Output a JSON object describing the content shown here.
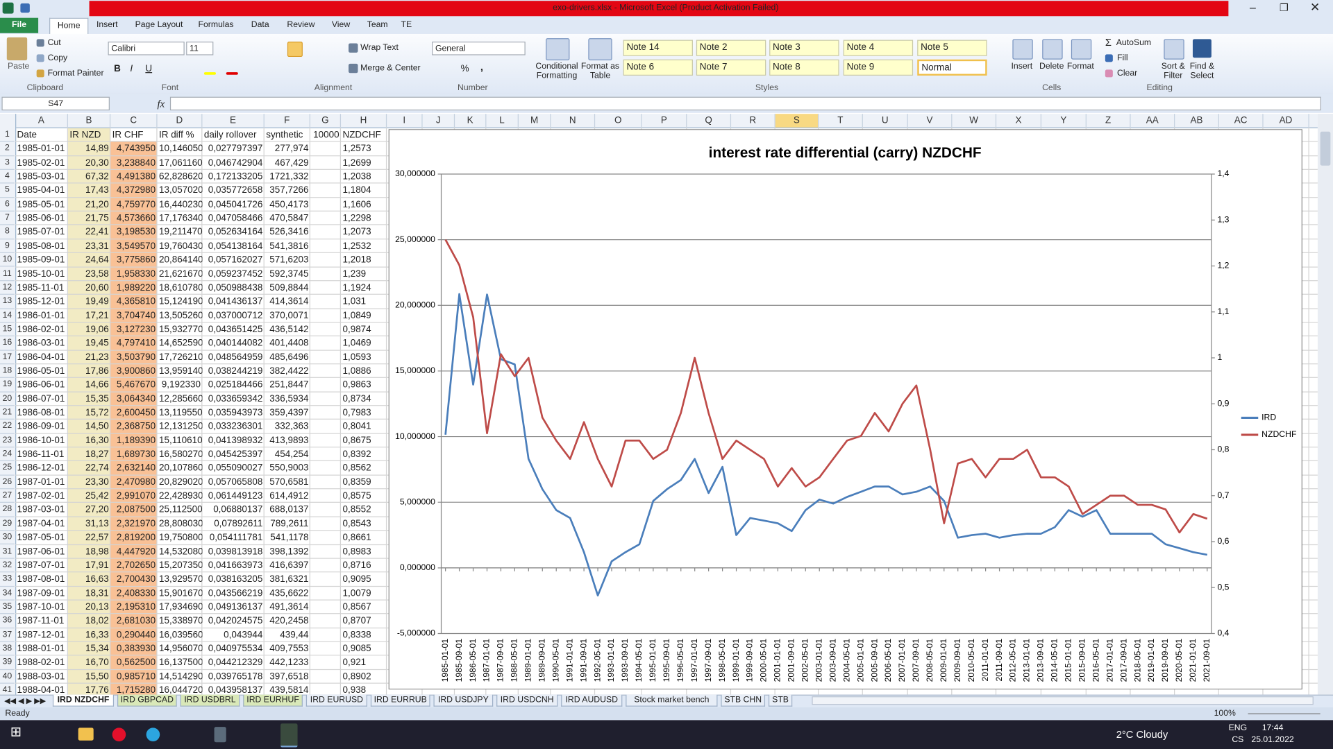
{
  "window": {
    "title": "exo-drivers.xlsx  -  Microsoft Excel (Product Activation Failed)"
  },
  "ribbon": {
    "tabs": [
      "File",
      "Home",
      "Insert",
      "Page Layout",
      "Formulas",
      "Data",
      "Review",
      "View",
      "Team",
      "TE"
    ],
    "clipboard": {
      "label": "Clipboard",
      "items": [
        "Paste",
        "Cut",
        "Copy",
        "Format Painter"
      ]
    },
    "font": {
      "label": "Font",
      "name": "Calibri",
      "size": "11",
      "buttons": [
        "B",
        "I",
        "U"
      ]
    },
    "alignment": {
      "label": "Alignment",
      "items": [
        "Wrap Text",
        "Merge & Center"
      ]
    },
    "number": {
      "label": "Number",
      "format": "General",
      "buttons": [
        "%",
        ","
      ]
    },
    "styles": {
      "label": "Styles",
      "items": [
        "Conditional Formatting",
        "Format as Table"
      ],
      "cells": [
        "Note 14",
        "Note 2",
        "Note 3",
        "Note 4",
        "Note 5",
        "Note 6",
        "Note 7",
        "Note 8",
        "Note 9",
        "Normal"
      ]
    },
    "cells": {
      "label": "Cells",
      "items": [
        "Insert",
        "Delete",
        "Format"
      ]
    },
    "editing": {
      "label": "Editing",
      "items": [
        "AutoSum",
        "Fill",
        "Clear",
        "Sort & Filter",
        "Find & Select"
      ]
    }
  },
  "formula_bar": {
    "name_box": "S47",
    "fx": "fx"
  },
  "columns": [
    "A",
    "B",
    "C",
    "D",
    "E",
    "F",
    "G",
    "H",
    "I",
    "J",
    "K",
    "L",
    "M",
    "N",
    "O",
    "P",
    "Q",
    "R",
    "S",
    "T",
    "U",
    "V",
    "W",
    "X",
    "Y",
    "Z",
    "AA",
    "AB",
    "AC",
    "AD"
  ],
  "row_numbers": [
    1,
    2,
    3,
    4,
    5,
    6,
    7,
    8,
    9,
    10,
    11,
    12,
    13,
    14,
    15,
    16,
    17,
    18,
    19,
    20,
    21,
    22,
    23,
    24,
    25,
    26,
    27,
    28,
    29,
    30,
    31,
    32,
    33,
    34,
    35,
    36,
    37,
    38,
    39,
    40,
    41
  ],
  "sheet": {
    "header": [
      "Date",
      "IR NZD",
      "IR CHF",
      "IR diff %",
      "daily rollover",
      "synthetic",
      "10000",
      "NZDCHF"
    ],
    "rows": [
      [
        "1985-01-01",
        "14,89",
        "4,743950",
        "10,146050",
        "0,027797397",
        "277,974",
        "1,2573"
      ],
      [
        "1985-02-01",
        "20,30",
        "3,238840",
        "17,061160",
        "0,046742904",
        "467,429",
        "1,2699"
      ],
      [
        "1985-03-01",
        "67,32",
        "4,491380",
        "62,828620",
        "0,172133205",
        "1721,332",
        "1,2038"
      ],
      [
        "1985-04-01",
        "17,43",
        "4,372980",
        "13,057020",
        "0,035772658",
        "357,7266",
        "1,1804"
      ],
      [
        "1985-05-01",
        "21,20",
        "4,759770",
        "16,440230",
        "0,045041726",
        "450,4173",
        "1,1606"
      ],
      [
        "1985-06-01",
        "21,75",
        "4,573660",
        "17,176340",
        "0,047058466",
        "470,5847",
        "1,2298"
      ],
      [
        "1985-07-01",
        "22,41",
        "3,198530",
        "19,211470",
        "0,052634164",
        "526,3416",
        "1,2073"
      ],
      [
        "1985-08-01",
        "23,31",
        "3,549570",
        "19,760430",
        "0,054138164",
        "541,3816",
        "1,2532"
      ],
      [
        "1985-09-01",
        "24,64",
        "3,775860",
        "20,864140",
        "0,057162027",
        "571,6203",
        "1,2018"
      ],
      [
        "1985-10-01",
        "23,58",
        "1,958330",
        "21,621670",
        "0,059237452",
        "592,3745",
        "1,239"
      ],
      [
        "1985-11-01",
        "20,60",
        "1,989220",
        "18,610780",
        "0,050988438",
        "509,8844",
        "1,1924"
      ],
      [
        "1985-12-01",
        "19,49",
        "4,365810",
        "15,124190",
        "0,041436137",
        "414,3614",
        "1,031"
      ],
      [
        "1986-01-01",
        "17,21",
        "3,704740",
        "13,505260",
        "0,037000712",
        "370,0071",
        "1,0849"
      ],
      [
        "1986-02-01",
        "19,06",
        "3,127230",
        "15,932770",
        "0,043651425",
        "436,5142",
        "0,9874"
      ],
      [
        "1986-03-01",
        "19,45",
        "4,797410",
        "14,652590",
        "0,040144082",
        "401,4408",
        "1,0469"
      ],
      [
        "1986-04-01",
        "21,23",
        "3,503790",
        "17,726210",
        "0,048564959",
        "485,6496",
        "1,0593"
      ],
      [
        "1986-05-01",
        "17,86",
        "3,900860",
        "13,959140",
        "0,038244219",
        "382,4422",
        "1,0886"
      ],
      [
        "1986-06-01",
        "14,66",
        "5,467670",
        "9,192330",
        "0,025184466",
        "251,8447",
        "0,9863"
      ],
      [
        "1986-07-01",
        "15,35",
        "3,064340",
        "12,285660",
        "0,033659342",
        "336,5934",
        "0,8734"
      ],
      [
        "1986-08-01",
        "15,72",
        "2,600450",
        "13,119550",
        "0,035943973",
        "359,4397",
        "0,7983"
      ],
      [
        "1986-09-01",
        "14,50",
        "2,368750",
        "12,131250",
        "0,033236301",
        "332,363",
        "0,8041"
      ],
      [
        "1986-10-01",
        "16,30",
        "1,189390",
        "15,110610",
        "0,041398932",
        "413,9893",
        "0,8675"
      ],
      [
        "1986-11-01",
        "18,27",
        "1,689730",
        "16,580270",
        "0,045425397",
        "454,254",
        "0,8392"
      ],
      [
        "1986-12-01",
        "22,74",
        "2,632140",
        "20,107860",
        "0,055090027",
        "550,9003",
        "0,8562"
      ],
      [
        "1987-01-01",
        "23,30",
        "2,470980",
        "20,829020",
        "0,057065808",
        "570,6581",
        "0,8359"
      ],
      [
        "1987-02-01",
        "25,42",
        "2,991070",
        "22,428930",
        "0,061449123",
        "614,4912",
        "0,8575"
      ],
      [
        "1987-03-01",
        "27,20",
        "2,087500",
        "25,112500",
        "0,06880137",
        "688,0137",
        "0,8552"
      ],
      [
        "1987-04-01",
        "31,13",
        "2,321970",
        "28,808030",
        "0,07892611",
        "789,2611",
        "0,8543"
      ],
      [
        "1987-05-01",
        "22,57",
        "2,819200",
        "19,750800",
        "0,054111781",
        "541,1178",
        "0,8661"
      ],
      [
        "1987-06-01",
        "18,98",
        "4,447920",
        "14,532080",
        "0,039813918",
        "398,1392",
        "0,8983"
      ],
      [
        "1987-07-01",
        "17,91",
        "2,702650",
        "15,207350",
        "0,041663973",
        "416,6397",
        "0,8716"
      ],
      [
        "1987-08-01",
        "16,63",
        "2,700430",
        "13,929570",
        "0,038163205",
        "381,6321",
        "0,9095"
      ],
      [
        "1987-09-01",
        "18,31",
        "2,408330",
        "15,901670",
        "0,043566219",
        "435,6622",
        "1,0079"
      ],
      [
        "1987-10-01",
        "20,13",
        "2,195310",
        "17,934690",
        "0,049136137",
        "491,3614",
        "0,8567"
      ],
      [
        "1987-11-01",
        "18,02",
        "2,681030",
        "15,338970",
        "0,042024575",
        "420,2458",
        "0,8707"
      ],
      [
        "1987-12-01",
        "16,33",
        "0,290440",
        "16,039560",
        "0,043944",
        "439,44",
        "0,8338"
      ],
      [
        "1988-01-01",
        "15,34",
        "0,383930",
        "14,956070",
        "0,040975534",
        "409,7553",
        "0,9085"
      ],
      [
        "1988-02-01",
        "16,70",
        "0,562500",
        "16,137500",
        "0,044212329",
        "442,1233",
        "0,921"
      ],
      [
        "1988-03-01",
        "15,50",
        "0,985710",
        "14,514290",
        "0,039765178",
        "397,6518",
        "0,8902"
      ],
      [
        "1988-04-01",
        "17,76",
        "1,715280",
        "16,044720",
        "0,043958137",
        "439,5814",
        "0,938"
      ]
    ]
  },
  "chart": {
    "type": "line",
    "title": "interest rate differential (carry) NZDCHF",
    "grid": true,
    "categories": [
      "1985-01-01",
      "1985-09-01",
      "1986-05-01",
      "1987-01-01",
      "1987-09-01",
      "1988-05-01",
      "1989-01-01",
      "1989-09-01",
      "1990-05-01",
      "1991-01-01",
      "1991-09-01",
      "1992-05-01",
      "1993-01-01",
      "1993-09-01",
      "1994-05-01",
      "1995-01-01",
      "1995-09-01",
      "1996-05-01",
      "1997-01-01",
      "1997-09-01",
      "1998-05-01",
      "1999-01-01",
      "1999-09-01",
      "2000-05-01",
      "2001-01-01",
      "2001-09-01",
      "2002-05-01",
      "2003-01-01",
      "2003-09-01",
      "2004-05-01",
      "2005-01-01",
      "2005-09-01",
      "2006-05-01",
      "2007-01-01",
      "2007-09-01",
      "2008-05-01",
      "2009-01-01",
      "2009-09-01",
      "2010-05-01",
      "2011-01-01",
      "2011-09-01",
      "2012-05-01",
      "2013-01-01",
      "2013-09-01",
      "2014-05-01",
      "2015-01-01",
      "2015-09-01",
      "2016-05-01",
      "2017-01-01",
      "2017-09-01",
      "2018-05-01",
      "2019-01-01",
      "2019-09-01",
      "2020-05-01",
      "2021-01-01",
      "2021-09-01"
    ],
    "ylim": [
      -5,
      30
    ],
    "yticks": [
      {
        "value": -5,
        "label": "-5,000000"
      },
      {
        "value": 0,
        "label": "0,000000"
      },
      {
        "value": 5,
        "label": "5,000000"
      },
      {
        "value": 10,
        "label": "10,000000"
      },
      {
        "value": 15,
        "label": "15,000000"
      },
      {
        "value": 20,
        "label": "20,000000"
      },
      {
        "value": 25,
        "label": "25,000000"
      },
      {
        "value": 30,
        "label": "30,000000"
      }
    ],
    "y2lim": [
      0.4,
      1.4
    ],
    "y2ticks": [
      {
        "value": 0.4,
        "label": "0,4"
      },
      {
        "value": 0.5,
        "label": "0,5"
      },
      {
        "value": 0.6,
        "label": "0,6"
      },
      {
        "value": 0.7,
        "label": "0,7"
      },
      {
        "value": 0.8,
        "label": "0,8"
      },
      {
        "value": 0.9,
        "label": "0,9"
      },
      1,
      {
        "value": 1.1,
        "label": "1,1"
      },
      {
        "value": 1.2,
        "label": "1,2"
      },
      {
        "value": 1.3,
        "label": "1,3"
      },
      {
        "value": 1.4,
        "label": "1,4"
      }
    ],
    "series": [
      {
        "name": "IRD",
        "color": "#4a7ebb",
        "axis": "y",
        "values": [
          10.14605,
          20.86414,
          13.95914,
          20.82902,
          15.90167,
          15.5,
          8.3,
          6.0,
          4.4,
          3.8,
          1.2,
          -2.1,
          0.5,
          1.2,
          1.8,
          5.1,
          6.0,
          6.7,
          8.3,
          5.7,
          7.7,
          2.5,
          3.8,
          3.6,
          3.4,
          2.8,
          4.4,
          5.2,
          4.9,
          5.4,
          5.8,
          6.2,
          6.2,
          5.6,
          5.8,
          6.2,
          5.1,
          2.3,
          2.5,
          2.6,
          2.3,
          2.5,
          2.6,
          2.6,
          3.1,
          4.4,
          3.9,
          4.4,
          2.6,
          2.6,
          2.6,
          2.6,
          1.8,
          1.5,
          1.2,
          1.0
        ]
      },
      {
        "name": "NZDCHF",
        "color": "#be4b48",
        "axis": "y2",
        "values": [
          1.2573,
          1.2018,
          1.0886,
          0.8359,
          1.0079,
          0.96,
          1.0,
          0.87,
          0.82,
          0.78,
          0.86,
          0.78,
          0.72,
          0.82,
          0.82,
          0.78,
          0.8,
          0.88,
          1.0,
          0.88,
          0.78,
          0.82,
          0.8,
          0.78,
          0.72,
          0.76,
          0.72,
          0.74,
          0.78,
          0.82,
          0.83,
          0.88,
          0.84,
          0.9,
          0.94,
          0.8,
          0.64,
          0.77,
          0.78,
          0.74,
          0.78,
          0.78,
          0.8,
          0.74,
          0.74,
          0.72,
          0.66,
          0.68,
          0.7,
          0.7,
          0.68,
          0.68,
          0.67,
          0.62,
          0.66,
          0.65
        ]
      }
    ]
  },
  "sheet_tabs": [
    "IRD NZDCHF",
    "IRD GBPCAD",
    "IRD USDBRL",
    "IRD EURHUF",
    "IRD EURUSD",
    "IRD EURRUB",
    "IRD USDJPY",
    "IRD USDCNH",
    "IRD AUDUSD",
    "Stock market bench",
    "STB CHN",
    "STB"
  ],
  "status": {
    "text": "Ready",
    "zoom": "100%"
  },
  "taskbar": {
    "weather": "2°C  Cloudy",
    "lang": "ENG",
    "layout": "CS",
    "time": "17:44",
    "date": "25.01.2022"
  }
}
